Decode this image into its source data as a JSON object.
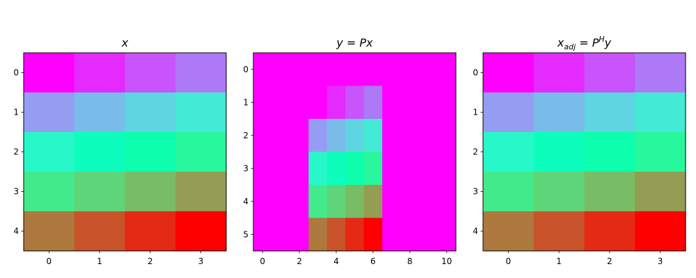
{
  "chart_data": [
    {
      "type": "heatmap",
      "title": "x",
      "title_parts": [
        {
          "t": "x",
          "style": "base"
        }
      ],
      "xticks": [
        0,
        1,
        2,
        3
      ],
      "yticks": [
        0,
        1,
        2,
        3,
        4
      ],
      "xlim": [
        -0.5,
        3.5
      ],
      "ylim": [
        4.5,
        -0.5
      ],
      "colormap": "rainbow",
      "vmin": 0,
      "vmax": 19,
      "z": [
        [
          0,
          1,
          2,
          3
        ],
        [
          4,
          5,
          6,
          7
        ],
        [
          8,
          9,
          10,
          11
        ],
        [
          12,
          13,
          14,
          15
        ],
        [
          16,
          17,
          18,
          19
        ]
      ]
    },
    {
      "type": "heatmap",
      "title": "y = Px",
      "title_parts": [
        {
          "t": "y",
          "style": "base"
        },
        {
          "t": " = ",
          "style": "op"
        },
        {
          "t": "Px",
          "style": "base"
        }
      ],
      "xticks": [
        0,
        2,
        4,
        6,
        8,
        10
      ],
      "yticks": [
        0,
        1,
        2,
        3,
        4,
        5
      ],
      "xlim": [
        -0.5,
        10.5
      ],
      "ylim": [
        5.5,
        -0.5
      ],
      "colormap": "rainbow",
      "vmin": 0,
      "vmax": 19,
      "z": [
        [
          0,
          0,
          0,
          0,
          0,
          0,
          0,
          0,
          0,
          0,
          0
        ],
        [
          0,
          0,
          0,
          0,
          1,
          2,
          3,
          0,
          0,
          0,
          0
        ],
        [
          0,
          0,
          0,
          4,
          5,
          6,
          7,
          0,
          0,
          0,
          0
        ],
        [
          0,
          0,
          0,
          8,
          9,
          10,
          11,
          0,
          0,
          0,
          0
        ],
        [
          0,
          0,
          0,
          12,
          13,
          14,
          15,
          0,
          0,
          0,
          0
        ],
        [
          0,
          0,
          0,
          16,
          17,
          18,
          19,
          0,
          0,
          0,
          0
        ]
      ]
    },
    {
      "type": "heatmap",
      "title": "x_adj = P^H y",
      "title_parts": [
        {
          "t": "x",
          "style": "base"
        },
        {
          "t": "adj",
          "style": "sub"
        },
        {
          "t": " = ",
          "style": "op"
        },
        {
          "t": "P",
          "style": "base"
        },
        {
          "t": "H",
          "style": "sup"
        },
        {
          "t": "y",
          "style": "base"
        }
      ],
      "xticks": [
        0,
        1,
        2,
        3
      ],
      "yticks": [
        0,
        1,
        2,
        3,
        4
      ],
      "xlim": [
        -0.5,
        3.5
      ],
      "ylim": [
        4.5,
        -0.5
      ],
      "colormap": "rainbow",
      "vmin": 0,
      "vmax": 19,
      "z": [
        [
          0,
          1,
          2,
          3
        ],
        [
          4,
          5,
          6,
          7
        ],
        [
          8,
          9,
          10,
          11
        ],
        [
          12,
          13,
          14,
          15
        ],
        [
          16,
          17,
          18,
          19
        ]
      ]
    }
  ]
}
